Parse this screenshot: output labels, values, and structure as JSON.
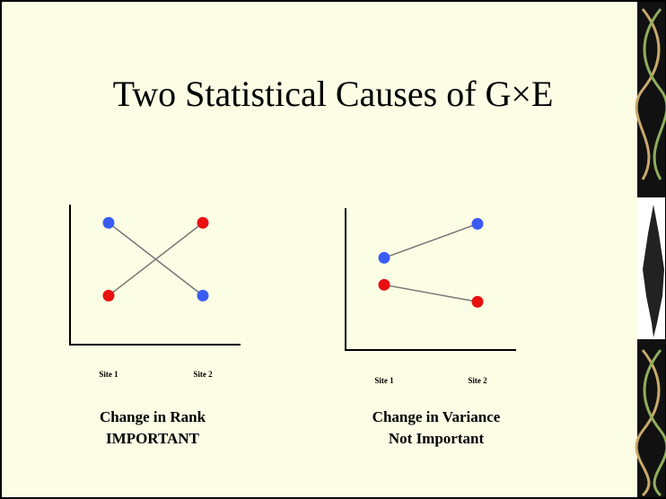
{
  "title": "Two Statistical Causes of G×E",
  "chart_data": [
    {
      "type": "line",
      "categories": [
        "Site 1",
        "Site 2"
      ],
      "series": [
        {
          "color": "#3a5cf5",
          "values": [
            8.7,
            3.5
          ]
        },
        {
          "color": "#e81010",
          "values": [
            3.5,
            8.7
          ]
        }
      ],
      "ylim": [
        0,
        10
      ],
      "caption": [
        "Change in Rank",
        "IMPORTANT"
      ]
    },
    {
      "type": "line",
      "categories": [
        "Site 1",
        "Site 2"
      ],
      "series": [
        {
          "color": "#3a5cf5",
          "values": [
            6.5,
            8.9
          ]
        },
        {
          "color": "#e81010",
          "values": [
            4.6,
            3.4
          ]
        }
      ],
      "ylim": [
        0,
        10
      ],
      "caption": [
        "Change in Variance",
        "Not Important"
      ]
    }
  ]
}
